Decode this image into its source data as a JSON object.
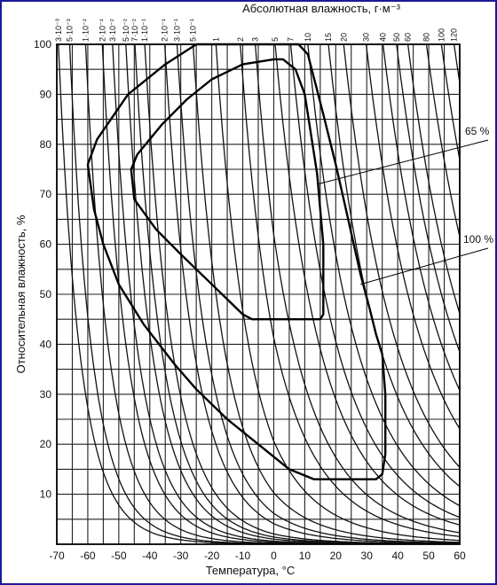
{
  "chart_data": {
    "type": "line",
    "title": "",
    "xlabel": "Температура, °C",
    "ylabel": "Относительная влажность, %",
    "top_axis_title": "Абсолютная влажность, г·м⁻³",
    "x_ticks": [
      "-70",
      "-60",
      "-50",
      "-40",
      "-30",
      "-20",
      "-10",
      "0",
      "10",
      "20",
      "30",
      "40",
      "50",
      "60"
    ],
    "y_ticks": [
      "10",
      "20",
      "30",
      "40",
      "50",
      "60",
      "70",
      "80",
      "90",
      "100"
    ],
    "xlim": [
      -70,
      60
    ],
    "ylim": [
      0,
      100
    ],
    "grid": true,
    "top_axis_labels": [
      {
        "label": "3·10⁻³",
        "abs_humidity": 0.003
      },
      {
        "label": "5·10⁻³",
        "abs_humidity": 0.005
      },
      {
        "label": "1·10⁻²",
        "abs_humidity": 0.01
      },
      {
        "label": "2·10⁻²",
        "abs_humidity": 0.02
      },
      {
        "label": "3·10⁻²",
        "abs_humidity": 0.03
      },
      {
        "label": "5·10⁻²",
        "abs_humidity": 0.05
      },
      {
        "label": "7·10⁻²",
        "abs_humidity": 0.07
      },
      {
        "label": "1·10⁻¹",
        "abs_humidity": 0.1
      },
      {
        "label": "2·10⁻¹",
        "abs_humidity": 0.2
      },
      {
        "label": "3·10⁻¹",
        "abs_humidity": 0.3
      },
      {
        "label": "5·10⁻¹",
        "abs_humidity": 0.5
      },
      {
        "label": "1",
        "abs_humidity": 1
      },
      {
        "label": "2",
        "abs_humidity": 2
      },
      {
        "label": "3",
        "abs_humidity": 3
      },
      {
        "label": "5",
        "abs_humidity": 5
      },
      {
        "label": "7",
        "abs_humidity": 7
      },
      {
        "label": "10",
        "abs_humidity": 10
      },
      {
        "label": "15",
        "abs_humidity": 15
      },
      {
        "label": "20",
        "abs_humidity": 20
      },
      {
        "label": "30",
        "abs_humidity": 30
      },
      {
        "label": "40",
        "abs_humidity": 40
      },
      {
        "label": "50",
        "abs_humidity": 50
      },
      {
        "label": "60",
        "abs_humidity": 60
      },
      {
        "label": "80",
        "abs_humidity": 80
      },
      {
        "label": "100",
        "abs_humidity": 100
      },
      {
        "label": "120",
        "abs_humidity": 120
      }
    ],
    "annotations": [
      {
        "text": "65 %",
        "points_to": [
          14,
          72
        ]
      },
      {
        "text": "100 %",
        "points_to": [
          28,
          52
        ]
      }
    ],
    "series": [
      {
        "points": [
          [
            -60,
            76
          ],
          [
            -57,
            81
          ],
          [
            -47,
            90
          ],
          [
            -35,
            96
          ],
          [
            -25,
            100
          ],
          [
            8,
            100
          ],
          [
            11,
            98
          ],
          [
            16,
            86
          ],
          [
            20,
            76
          ],
          [
            24,
            65
          ],
          [
            28,
            54
          ],
          [
            31,
            47
          ],
          [
            33,
            42
          ],
          [
            35,
            38
          ],
          [
            36,
            30
          ],
          [
            36,
            18
          ],
          [
            35,
            14
          ],
          [
            33,
            13
          ],
          [
            13,
            13
          ],
          [
            5,
            15
          ],
          [
            -5,
            20
          ],
          [
            -15,
            25
          ],
          [
            -25,
            31
          ],
          [
            -32,
            36
          ],
          [
            -42,
            44
          ],
          [
            -50,
            52
          ],
          [
            -55,
            60
          ],
          [
            -58,
            67
          ],
          [
            -60,
            76
          ]
        ]
      },
      {
        "points": [
          [
            -46,
            75
          ],
          [
            -44,
            78
          ],
          [
            -36,
            84
          ],
          [
            -28,
            89
          ],
          [
            -20,
            93
          ],
          [
            -10,
            96
          ],
          [
            0,
            97
          ],
          [
            3,
            97
          ],
          [
            7,
            95
          ],
          [
            10,
            90
          ],
          [
            12,
            82
          ],
          [
            14,
            74
          ],
          [
            15,
            67
          ],
          [
            16,
            60
          ],
          [
            16,
            46
          ],
          [
            15,
            45
          ],
          [
            -7,
            45
          ],
          [
            -10,
            46
          ],
          [
            -20,
            52
          ],
          [
            -30,
            58
          ],
          [
            -38,
            63
          ],
          [
            -45,
            69
          ],
          [
            -46,
            75
          ]
        ]
      }
    ]
  }
}
